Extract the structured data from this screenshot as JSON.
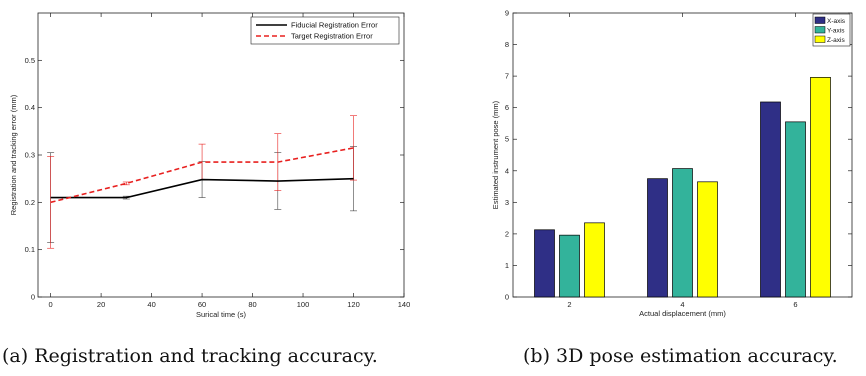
{
  "chart_data": [
    {
      "type": "line",
      "xlabel": "Surical time (s)",
      "ylabel": "Registration and tracking error (mm)",
      "xlim": [
        -5,
        140
      ],
      "ylim": [
        0,
        0.6
      ],
      "xticks": [
        0,
        20,
        40,
        60,
        80,
        100,
        120,
        140
      ],
      "yticks": [
        0,
        0.1,
        0.2,
        0.3,
        0.4,
        0.5
      ],
      "x": [
        0,
        30,
        60,
        90,
        120
      ],
      "legend_position": "top-right",
      "series": [
        {
          "name": "Fiducial Registration Error",
          "color": "#000000",
          "style": "solid",
          "values": [
            0.21,
            0.21,
            0.248,
            0.245,
            0.25
          ],
          "errors": [
            0.095,
            0.003,
            0.038,
            0.06,
            0.068
          ]
        },
        {
          "name": "Target Registration Error",
          "color": "#e8201f",
          "style": "dashed",
          "values": [
            0.2,
            0.24,
            0.285,
            0.285,
            0.315
          ],
          "errors": [
            0.097,
            0.003,
            0.038,
            0.06,
            0.068
          ]
        }
      ]
    },
    {
      "type": "bar",
      "xlabel": "Actual displacement (mm)",
      "ylabel": "Estimated instrument pose (mm)",
      "categories": [
        "2",
        "4",
        "6"
      ],
      "ylim": [
        0,
        9
      ],
      "yticks": [
        0,
        1,
        2,
        3,
        4,
        5,
        6,
        7,
        8,
        9
      ],
      "legend_position": "top-right",
      "series": [
        {
          "name": "X-axis",
          "color": "#2f2f86",
          "values": [
            2.13,
            3.75,
            6.18
          ]
        },
        {
          "name": "Y-axis",
          "color": "#33b39b",
          "values": [
            1.96,
            4.07,
            5.55
          ]
        },
        {
          "name": "Z-axis",
          "color": "#ffff00",
          "values": [
            2.35,
            3.65,
            6.96
          ]
        }
      ]
    }
  ],
  "captions": {
    "left": "(a) Registration and tracking accuracy.",
    "right": "(b) 3D pose estimation accuracy."
  }
}
